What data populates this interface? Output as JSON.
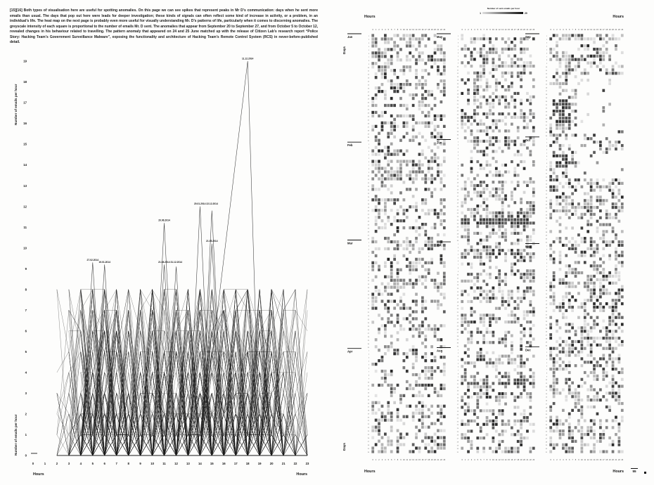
{
  "caption": "[15][16] Both types of visualisation here are useful for spotting anomalies. On this page we can see spikes that represent peaks in Mr D’s communication: days when he sent more emails than usual. The days that pop out here were leads for deeper investigation; these kinds of signals can often reflect some kind of increase in activity, or a problem, in an individual’s life. The heat map on the next page is probably even more useful for visually understanding Mr. D’s patterns of life, particularly when it comes to discerning anomalies. The greyscale intensity of each square is proportional to the number of emails Mr. D sent. The anomalies that appear from September 20 to September 27, and from October 5 to October 12, revealed changes in his behaviour related to travelling. The pattern anomaly that appeared on 24 and 25 June matched up with the release of Citizen Lab’s research report “Police Story: Hacking Team’s Government Surveillance Malware”, exposing the functionality and architecture of Hacking Team’s Remote Control System (RCS) in never-before-published detail.",
  "left_chart": {
    "ylabel": "Number of emails per hour",
    "xlabel": "Hours"
  },
  "right_chart": {
    "hours_label": "Hours",
    "days_label": "Days",
    "page_number": "55"
  },
  "chart_data": [
    {
      "type": "line",
      "xlabel": "Hours",
      "ylabel": "Number of emails per hour",
      "xlim": [
        0,
        23
      ],
      "ylim": [
        0,
        19
      ],
      "x_ticks": [
        0,
        1,
        2,
        3,
        4,
        5,
        6,
        7,
        8,
        9,
        10,
        11,
        12,
        13,
        14,
        15,
        16,
        17,
        18,
        19,
        20,
        21,
        22,
        23
      ],
      "y_ticks": [
        0,
        1,
        2,
        3,
        4,
        5,
        6,
        7,
        8,
        9,
        10,
        11,
        12,
        13,
        14,
        15,
        16,
        17,
        18,
        19
      ],
      "grid": false,
      "annotations": [
        {
          "label": "27.02.2014",
          "peaks": [
            [
              5,
              9.3
            ]
          ]
        },
        {
          "label": "19.01.2014",
          "peaks": [
            [
              6,
              9.2
            ]
          ]
        },
        {
          "label": "21.08.2014 31.12.2014",
          "peaks": [
            [
              11,
              9.2
            ],
            [
              12,
              9.1
            ]
          ]
        },
        {
          "label": "20.06.2014",
          "peaks": [
            [
              11,
              11.2
            ]
          ]
        },
        {
          "label": "21.05.2014",
          "peaks": [
            [
              15,
              10.2
            ]
          ]
        },
        {
          "label": "20.01.2014 22.12.2014",
          "peaks": [
            [
              14,
              12
            ],
            [
              15,
              11.8
            ]
          ]
        },
        {
          "label": "11.12.2014",
          "peaks": [
            [
              18,
              19
            ]
          ],
          "rise_from": 14
        }
      ],
      "procedural": {
        "seed": 20141,
        "series_count": 168,
        "active_hours": [
          3,
          23
        ],
        "typical_max": 8
      }
    },
    {
      "type": "heatmap",
      "legend": {
        "title": "Number of sent emails per hour",
        "min": "1",
        "max": "20"
      },
      "hours": [
        0,
        1,
        2,
        3,
        4,
        5,
        6,
        7,
        8,
        9,
        10,
        11,
        12,
        13,
        14,
        15,
        16,
        17,
        18,
        19,
        20,
        21,
        22,
        23
      ],
      "columns": [
        {
          "months": [
            {
              "name": "Jan",
              "days": 31
            },
            {
              "name": "Feb",
              "days": 28
            },
            {
              "name": "Mar",
              "days": 31
            },
            {
              "name": "Apr",
              "days": 30
            }
          ]
        },
        {
          "months": [
            {
              "name": "May",
              "days": 31
            },
            {
              "name": "Jun",
              "days": 30
            },
            {
              "name": "Jul",
              "days": 31
            },
            {
              "name": "Aug",
              "days": 31
            }
          ]
        },
        {
          "months": [
            {
              "name": "Sep",
              "days": 30
            },
            {
              "name": "Oct",
              "days": 31
            },
            {
              "name": "Nov",
              "days": 30
            },
            {
              "name": "Dec",
              "days": 31
            }
          ]
        }
      ],
      "anomaly_regions": [
        {
          "column": 2,
          "month_index": 0,
          "days": [
            19,
            26
          ],
          "hours": [
            1,
            6
          ],
          "mode": "dark"
        },
        {
          "column": 2,
          "month_index": 0,
          "days": [
            13,
            30
          ],
          "hours": [
            9,
            23
          ],
          "mode": "sparse"
        },
        {
          "column": 2,
          "month_index": 1,
          "days": [
            5,
            12
          ],
          "hours": [
            9,
            23
          ],
          "mode": "sparse"
        },
        {
          "column": 2,
          "month_index": 1,
          "days": [
            6,
            9
          ],
          "hours": [
            1,
            5
          ],
          "mode": "dark"
        },
        {
          "column": 1,
          "month_index": 1,
          "days": [
            24,
            25
          ],
          "hours": [
            0,
            23
          ],
          "mode": "dark"
        },
        {
          "column": 1,
          "month_index": 3,
          "days": [
            11,
            11
          ],
          "hours": [
            0,
            23
          ],
          "mode": "dark"
        }
      ],
      "procedural": {
        "seed": 77,
        "fill_probability": 0.58
      }
    }
  ]
}
